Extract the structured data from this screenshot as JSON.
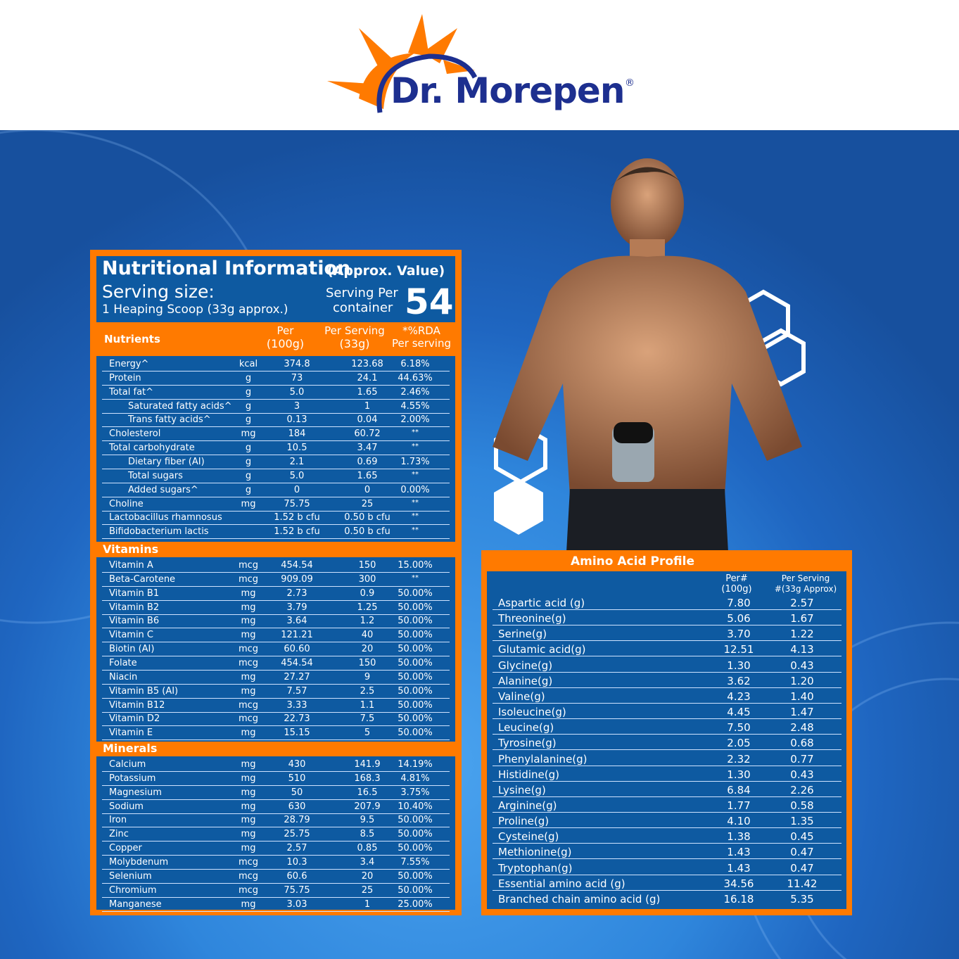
{
  "brand": {
    "name": "Dr. Morepen",
    "registered": "®",
    "colors": {
      "orange": "#ff7a00",
      "navy": "#1d2f8f",
      "panel": "#0e5aa1"
    }
  },
  "nutrition": {
    "title": "Nutritional Information",
    "title_note": "(Approx. Value)",
    "serving_size_label": "Serving size:",
    "serving_size_value": "1 Heaping Scoop (33g approx.)",
    "servings_per_container_label1": "Serving Per",
    "servings_per_container_label2": "container",
    "servings_per_container": "54",
    "headers": {
      "nutrients": "Nutrients",
      "per100_1": "Per",
      "per100_2": "(100g)",
      "serving_1": "Per Serving",
      "serving_2": "(33g)",
      "rda_1": "*%RDA",
      "rda_2": "Per serving"
    },
    "main": [
      {
        "name": "Energy^",
        "unit": "kcal",
        "per100": "374.8",
        "serving": "123.68",
        "rda": "6.18%"
      },
      {
        "name": "Protein",
        "unit": "g",
        "per100": "73",
        "serving": "24.1",
        "rda": "44.63%"
      },
      {
        "name": "Total fat^",
        "unit": "g",
        "per100": "5.0",
        "serving": "1.65",
        "rda": "2.46%"
      },
      {
        "name": "Saturated fatty acids^",
        "unit": "g",
        "per100": "3",
        "serving": "1",
        "rda": "4.55%",
        "indent": true
      },
      {
        "name": "Trans fatty acids^",
        "unit": "g",
        "per100": "0.13",
        "serving": "0.04",
        "rda": "2.00%",
        "indent": true
      },
      {
        "name": "Cholesterol",
        "unit": "mg",
        "per100": "184",
        "serving": "60.72",
        "rda": "**"
      },
      {
        "name": "Total carbohydrate",
        "unit": "g",
        "per100": "10.5",
        "serving": "3.47",
        "rda": "**"
      },
      {
        "name": "Dietary fiber (AI)",
        "unit": "g",
        "per100": "2.1",
        "serving": "0.69",
        "rda": "1.73%",
        "indent": true
      },
      {
        "name": "Total sugars",
        "unit": "g",
        "per100": "5.0",
        "serving": "1.65",
        "rda": "**",
        "indent": true
      },
      {
        "name": "Added sugars^",
        "unit": "g",
        "per100": "0",
        "serving": "0",
        "rda": "0.00%",
        "indent": true
      },
      {
        "name": "Choline",
        "unit": "mg",
        "per100": "75.75",
        "serving": "25",
        "rda": "**"
      },
      {
        "name": "Lactobacillus rhamnosus",
        "unit": "",
        "per100": "1.52 b cfu",
        "serving": "0.50 b cfu",
        "rda": "**"
      },
      {
        "name": "Bifidobacterium lactis",
        "unit": "",
        "per100": "1.52 b cfu",
        "serving": "0.50 b cfu",
        "rda": "**"
      }
    ],
    "vitamins_title": "Vitamins",
    "vitamins": [
      {
        "name": "Vitamin A",
        "unit": "mcg",
        "per100": "454.54",
        "serving": "150",
        "rda": "15.00%"
      },
      {
        "name": "Beta-Carotene",
        "unit": "mcg",
        "per100": "909.09",
        "serving": "300",
        "rda": "**"
      },
      {
        "name": "Vitamin B1",
        "unit": "mg",
        "per100": "2.73",
        "serving": "0.9",
        "rda": "50.00%"
      },
      {
        "name": "Vitamin B2",
        "unit": "mg",
        "per100": "3.79",
        "serving": "1.25",
        "rda": "50.00%"
      },
      {
        "name": "Vitamin B6",
        "unit": "mg",
        "per100": "3.64",
        "serving": "1.2",
        "rda": "50.00%"
      },
      {
        "name": "Vitamin C",
        "unit": "mg",
        "per100": "121.21",
        "serving": "40",
        "rda": "50.00%"
      },
      {
        "name": "Biotin (AI)",
        "unit": "mcg",
        "per100": "60.60",
        "serving": "20",
        "rda": "50.00%"
      },
      {
        "name": "Folate",
        "unit": "mcg",
        "per100": "454.54",
        "serving": "150",
        "rda": "50.00%"
      },
      {
        "name": "Niacin",
        "unit": "mg",
        "per100": "27.27",
        "serving": "9",
        "rda": "50.00%"
      },
      {
        "name": "Vitamin B5 (AI)",
        "unit": "mg",
        "per100": "7.57",
        "serving": "2.5",
        "rda": "50.00%"
      },
      {
        "name": "Vitamin B12",
        "unit": "mcg",
        "per100": "3.33",
        "serving": "1.1",
        "rda": "50.00%"
      },
      {
        "name": "Vitamin D2",
        "unit": "mcg",
        "per100": "22.73",
        "serving": "7.5",
        "rda": "50.00%"
      },
      {
        "name": "Vitamin E",
        "unit": "mg",
        "per100": "15.15",
        "serving": "5",
        "rda": "50.00%"
      }
    ],
    "minerals_title": "Minerals",
    "minerals": [
      {
        "name": "Calcium",
        "unit": "mg",
        "per100": "430",
        "serving": "141.9",
        "rda": "14.19%"
      },
      {
        "name": "Potassium",
        "unit": "mg",
        "per100": "510",
        "serving": "168.3",
        "rda": "4.81%"
      },
      {
        "name": "Magnesium",
        "unit": "mg",
        "per100": "50",
        "serving": "16.5",
        "rda": "3.75%"
      },
      {
        "name": "Sodium",
        "unit": "mg",
        "per100": "630",
        "serving": "207.9",
        "rda": "10.40%"
      },
      {
        "name": "Iron",
        "unit": "mg",
        "per100": "28.79",
        "serving": "9.5",
        "rda": "50.00%"
      },
      {
        "name": "Zinc",
        "unit": "mg",
        "per100": "25.75",
        "serving": "8.5",
        "rda": "50.00%"
      },
      {
        "name": "Copper",
        "unit": "mg",
        "per100": "2.57",
        "serving": "0.85",
        "rda": "50.00%"
      },
      {
        "name": "Molybdenum",
        "unit": "mcg",
        "per100": "10.3",
        "serving": "3.4",
        "rda": "7.55%"
      },
      {
        "name": "Selenium",
        "unit": "mcg",
        "per100": "60.6",
        "serving": "20",
        "rda": "50.00%"
      },
      {
        "name": "Chromium",
        "unit": "mcg",
        "per100": "75.75",
        "serving": "25",
        "rda": "50.00%"
      },
      {
        "name": "Manganese",
        "unit": "mg",
        "per100": "3.03",
        "serving": "1",
        "rda": "25.00%"
      }
    ]
  },
  "amino": {
    "title": "Amino Acid Profile",
    "headers": {
      "per100_1": "Per#",
      "per100_2": "(100g)",
      "serving_1": "Per Serving",
      "serving_2": "#(33g Approx)"
    },
    "rows": [
      {
        "name": "Aspartic acid (g)",
        "per100": "7.80",
        "serving": "2.57"
      },
      {
        "name": "Threonine(g)",
        "per100": "5.06",
        "serving": "1.67"
      },
      {
        "name": "Serine(g)",
        "per100": "3.70",
        "serving": "1.22"
      },
      {
        "name": "Glutamic acid(g)",
        "per100": "12.51",
        "serving": "4.13"
      },
      {
        "name": "Glycine(g)",
        "per100": "1.30",
        "serving": "0.43"
      },
      {
        "name": "Alanine(g)",
        "per100": "3.62",
        "serving": "1.20"
      },
      {
        "name": "Valine(g)",
        "per100": "4.23",
        "serving": "1.40"
      },
      {
        "name": "Isoleucine(g)",
        "per100": "4.45",
        "serving": "1.47"
      },
      {
        "name": "Leucine(g)",
        "per100": "7.50",
        "serving": "2.48"
      },
      {
        "name": "Tyrosine(g)",
        "per100": "2.05",
        "serving": "0.68"
      },
      {
        "name": "Phenylalanine(g)",
        "per100": "2.32",
        "serving": "0.77"
      },
      {
        "name": "Histidine(g)",
        "per100": "1.30",
        "serving": "0.43"
      },
      {
        "name": "Lysine(g)",
        "per100": "6.84",
        "serving": "2.26"
      },
      {
        "name": "Arginine(g)",
        "per100": "1.77",
        "serving": "0.58"
      },
      {
        "name": "Proline(g)",
        "per100": "4.10",
        "serving": "1.35"
      },
      {
        "name": "Cysteine(g)",
        "per100": "1.38",
        "serving": "0.45"
      },
      {
        "name": "Methionine(g)",
        "per100": "1.43",
        "serving": "0.47"
      },
      {
        "name": "Tryptophan(g)",
        "per100": "1.43",
        "serving": "0.47"
      },
      {
        "name": "Essential amino acid (g)",
        "per100": "34.56",
        "serving": "11.42"
      },
      {
        "name": "Branched chain amino acid (g)",
        "per100": "16.18",
        "serving": "5.35"
      }
    ]
  }
}
